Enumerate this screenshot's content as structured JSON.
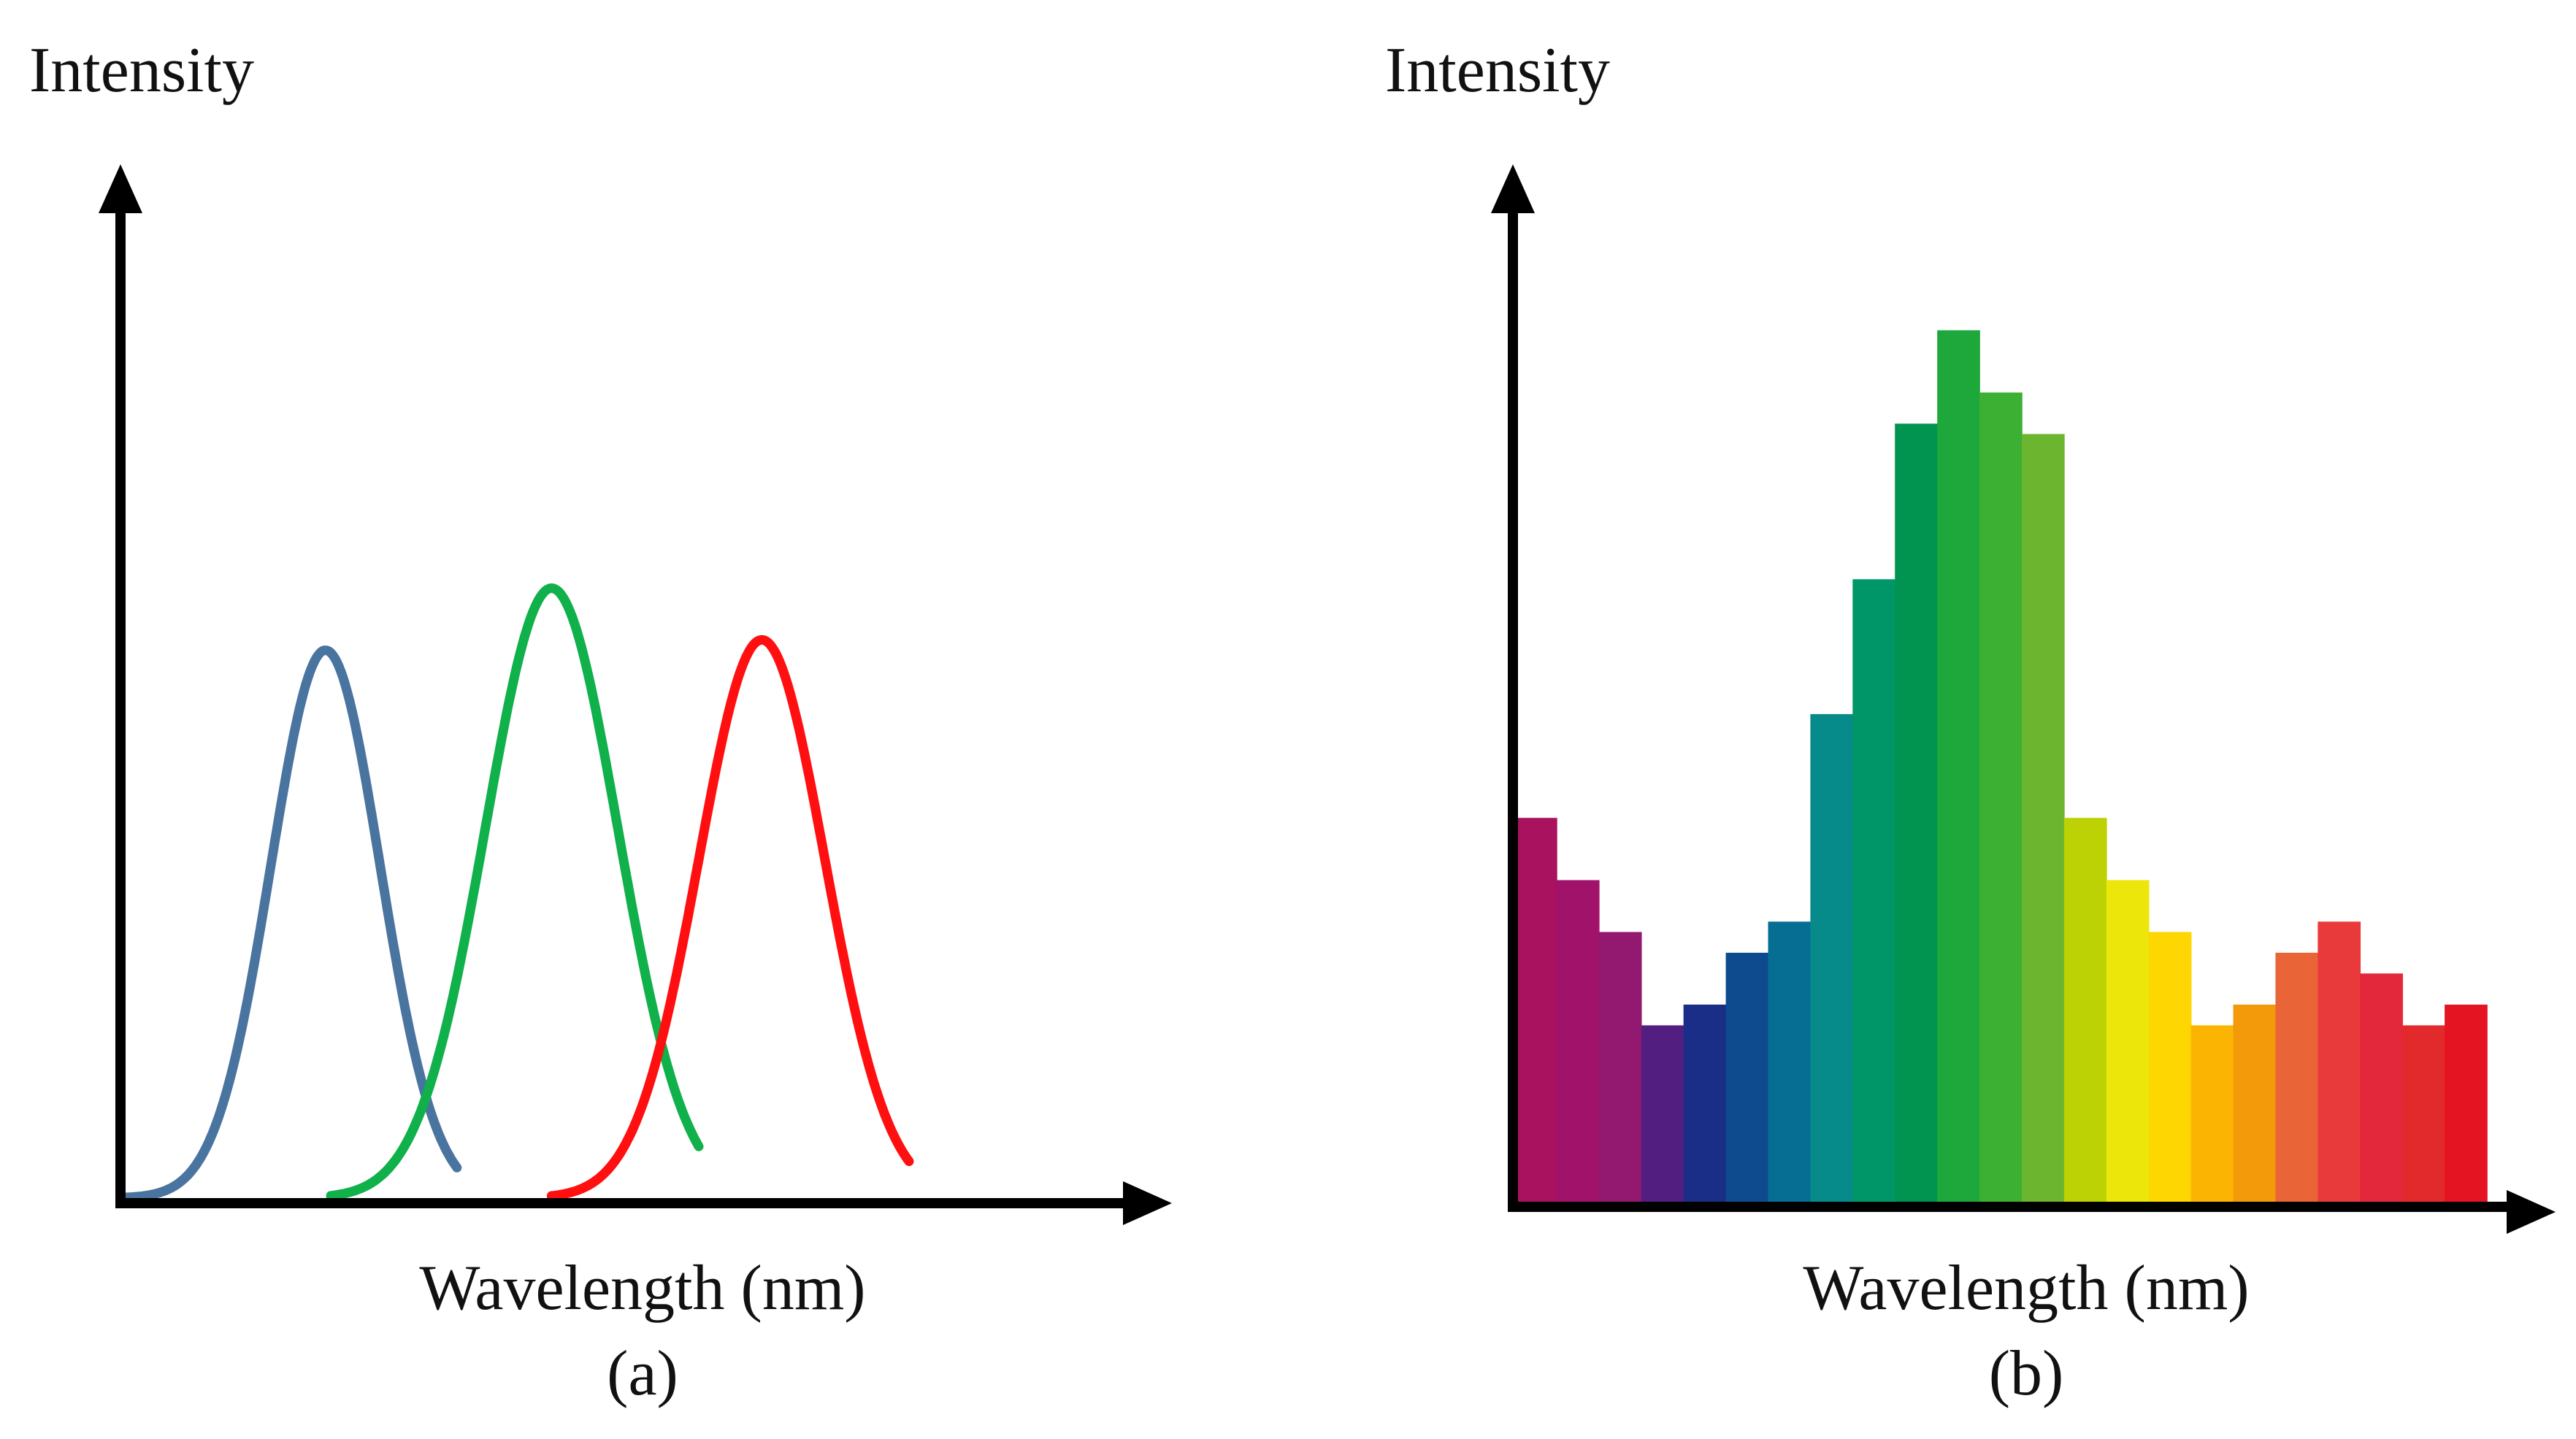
{
  "chart_data": [
    {
      "type": "line",
      "panel_label": "(a)",
      "ylabel": "Intensity",
      "xlabel": "Wavelength (nm)",
      "grid": false,
      "xlim": [
        0,
        100
      ],
      "ylim": [
        0,
        100
      ],
      "series": [
        {
          "name": "blue",
          "color": "#4a74a0",
          "peak_x": 19.5,
          "peak_y": 53,
          "sigma": 5.2,
          "x_start": 0.5,
          "x_end": 32
        },
        {
          "name": "green",
          "color": "#10b04a",
          "peak_x": 41,
          "peak_y": 59,
          "sigma": 6.3,
          "x_start": 20,
          "x_end": 55
        },
        {
          "name": "red",
          "color": "#ff0f0f",
          "peak_x": 61,
          "peak_y": 54,
          "sigma": 6.0,
          "x_start": 41,
          "x_end": 75
        }
      ]
    },
    {
      "type": "bar",
      "panel_label": "(b)",
      "ylabel": "Intensity",
      "xlabel": "Wavelength (nm)",
      "grid": false,
      "ylim": [
        0,
        100
      ],
      "values": [
        37,
        31,
        26,
        17,
        19,
        24,
        27,
        47,
        60,
        75,
        84,
        78,
        74,
        37,
        31,
        26,
        17,
        19,
        24,
        27,
        22,
        17,
        19
      ],
      "colors": [
        "#a8125e",
        "#a1136a",
        "#931870",
        "#521f80",
        "#1a2d87",
        "#0e4a8e",
        "#066e93",
        "#078a8a",
        "#019668",
        "#009450",
        "#1ea83b",
        "#3bb032",
        "#6cb52f",
        "#bcd204",
        "#ece60b",
        "#fed601",
        "#fbb402",
        "#f39a0b",
        "#e96436",
        "#e93a3b",
        "#e2283a",
        "#e2292c",
        "#e41422"
      ]
    }
  ]
}
